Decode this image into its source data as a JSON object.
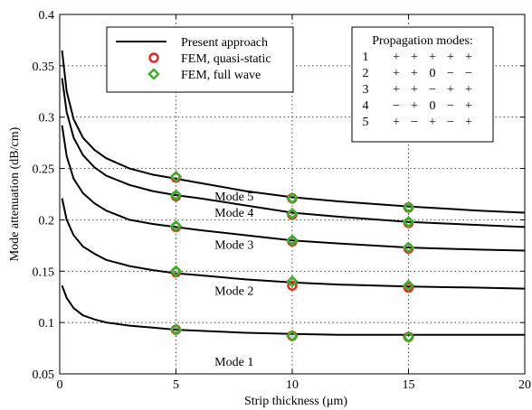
{
  "chart_data": {
    "type": "line",
    "title": "",
    "xlabel": "Strip thickness (μm)",
    "ylabel": "Mode attenuation (dB/cm)",
    "xlim": [
      0,
      20
    ],
    "ylim": [
      0.05,
      0.4
    ],
    "x_ticks": [
      0,
      5,
      10,
      15,
      20
    ],
    "y_ticks": [
      0.05,
      0.1,
      0.15,
      0.2,
      0.25,
      0.3,
      0.35,
      0.4
    ],
    "x_tick_labels": [
      "0",
      "5",
      "10",
      "15",
      "20"
    ],
    "y_tick_labels": [
      "0.05",
      "0.1",
      "0.15",
      "0.2",
      "0.25",
      "0.3",
      "0.35",
      "0.4"
    ],
    "grid": true,
    "legend_position": "top-left",
    "legend": [
      {
        "label": "Present approach",
        "marker": "line",
        "color": "#000000"
      },
      {
        "label": "FEM, quasi-static",
        "marker": "circle",
        "color": "#e8281e"
      },
      {
        "label": "FEM, full wave",
        "marker": "diamond",
        "color": "#3cb02a"
      }
    ],
    "modes_table": {
      "title": "Propagation modes:",
      "rows": [
        {
          "mode": "1",
          "signs": [
            "+",
            "+",
            "+",
            "+",
            "+"
          ]
        },
        {
          "mode": "2",
          "signs": [
            "+",
            "+",
            "0",
            "−",
            "−"
          ]
        },
        {
          "mode": "3",
          "signs": [
            "+",
            "+",
            "−",
            "+",
            "+"
          ]
        },
        {
          "mode": "4",
          "signs": [
            "−",
            "+",
            "0",
            "−",
            "+"
          ]
        },
        {
          "mode": "5",
          "signs": [
            "+",
            "−",
            "+",
            "−",
            "+"
          ]
        }
      ]
    },
    "series": [
      {
        "label": "Mode 1",
        "x": [
          0.1,
          0.3,
          0.6,
          1,
          1.5,
          2,
          3,
          4,
          5,
          6,
          8,
          10,
          12,
          15,
          18,
          20
        ],
        "y": [
          0.136,
          0.124,
          0.114,
          0.107,
          0.103,
          0.1,
          0.097,
          0.095,
          0.093,
          0.092,
          0.09,
          0.089,
          0.088,
          0.088,
          0.088,
          0.088
        ],
        "fem_quasi_static": {
          "x": [
            5,
            10,
            15
          ],
          "y": [
            0.093,
            0.087,
            0.086
          ]
        },
        "fem_full_wave": {
          "x": [
            5,
            10,
            15
          ],
          "y": [
            0.093,
            0.087,
            0.086
          ]
        }
      },
      {
        "label": "Mode 2",
        "x": [
          0.1,
          0.3,
          0.6,
          1,
          1.5,
          2,
          3,
          4,
          5,
          6,
          8,
          10,
          12,
          15,
          18,
          20
        ],
        "y": [
          0.221,
          0.2,
          0.185,
          0.174,
          0.167,
          0.161,
          0.155,
          0.151,
          0.148,
          0.146,
          0.142,
          0.139,
          0.137,
          0.135,
          0.134,
          0.133
        ],
        "fem_quasi_static": {
          "x": [
            5,
            10,
            15
          ],
          "y": [
            0.149,
            0.136,
            0.134
          ]
        },
        "fem_full_wave": {
          "x": [
            5,
            10,
            15
          ],
          "y": [
            0.15,
            0.14,
            0.136
          ]
        }
      },
      {
        "label": "Mode 3",
        "x": [
          0.1,
          0.3,
          0.6,
          1,
          1.5,
          2,
          3,
          4,
          5,
          6,
          8,
          10,
          12,
          15,
          18,
          20
        ],
        "y": [
          0.292,
          0.262,
          0.24,
          0.226,
          0.216,
          0.209,
          0.2,
          0.196,
          0.193,
          0.19,
          0.185,
          0.18,
          0.177,
          0.173,
          0.171,
          0.17
        ],
        "fem_quasi_static": {
          "x": [
            5,
            10,
            15
          ],
          "y": [
            0.193,
            0.179,
            0.172
          ]
        },
        "fem_full_wave": {
          "x": [
            5,
            10,
            15
          ],
          "y": [
            0.194,
            0.18,
            0.173
          ]
        }
      },
      {
        "label": "Mode 4",
        "x": [
          0.1,
          0.3,
          0.6,
          1,
          1.5,
          2,
          3,
          4,
          5,
          6,
          8,
          10,
          12,
          15,
          18,
          20
        ],
        "y": [
          0.338,
          0.305,
          0.28,
          0.263,
          0.251,
          0.243,
          0.234,
          0.228,
          0.224,
          0.221,
          0.214,
          0.207,
          0.203,
          0.198,
          0.195,
          0.193
        ],
        "fem_quasi_static": {
          "x": [
            5,
            10,
            15
          ],
          "y": [
            0.223,
            0.205,
            0.197
          ]
        },
        "fem_full_wave": {
          "x": [
            5,
            10,
            15
          ],
          "y": [
            0.224,
            0.206,
            0.198
          ]
        }
      },
      {
        "label": "Mode 5",
        "x": [
          0.1,
          0.3,
          0.6,
          1,
          1.5,
          2,
          3,
          4,
          5,
          6,
          8,
          10,
          12,
          15,
          18,
          20
        ],
        "y": [
          0.365,
          0.325,
          0.298,
          0.28,
          0.268,
          0.26,
          0.25,
          0.244,
          0.24,
          0.236,
          0.228,
          0.222,
          0.218,
          0.213,
          0.209,
          0.207
        ],
        "fem_quasi_static": {
          "x": [
            5,
            10,
            15
          ],
          "y": [
            0.241,
            0.221,
            0.212
          ]
        },
        "fem_full_wave": {
          "x": [
            5,
            10,
            15
          ],
          "y": [
            0.242,
            0.221,
            0.212
          ]
        }
      }
    ]
  }
}
